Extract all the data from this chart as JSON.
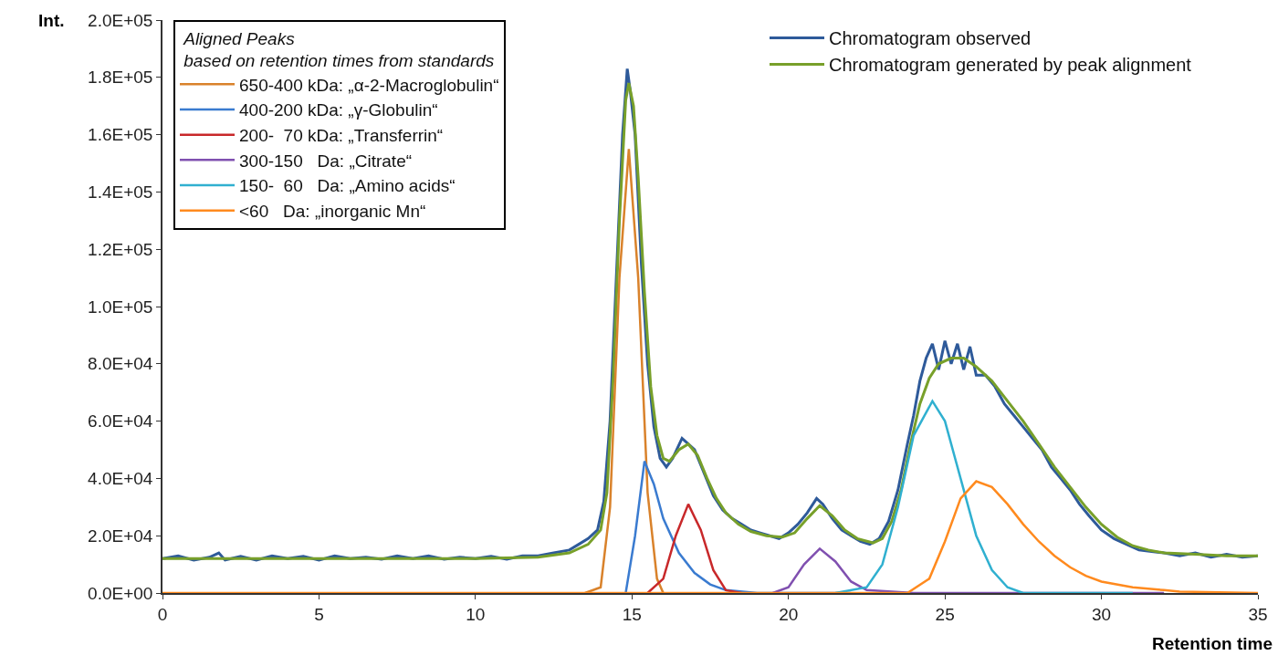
{
  "chart_data": {
    "type": "line",
    "xlabel": "Retention time",
    "ylabel": "Int.",
    "legend_title": "Aligned Peaks\nbased on retention times from standards",
    "xlim": [
      0,
      35
    ],
    "xticks": [
      0,
      5,
      10,
      15,
      20,
      25,
      30,
      35
    ],
    "ylim": [
      0,
      200000
    ],
    "yticks": [
      {
        "value": 0,
        "label": "0.0E+00"
      },
      {
        "value": 20000,
        "label": "2.0E+04"
      },
      {
        "value": 40000,
        "label": "4.0E+04"
      },
      {
        "value": 60000,
        "label": "6.0E+04"
      },
      {
        "value": 80000,
        "label": "8.0E+04"
      },
      {
        "value": 100000,
        "label": "1.0E+05"
      },
      {
        "value": 120000,
        "label": "1.2E+05"
      },
      {
        "value": 140000,
        "label": "1.4E+05"
      },
      {
        "value": 160000,
        "label": "1.6E+05"
      },
      {
        "value": 180000,
        "label": "1.8E+05"
      },
      {
        "value": 200000,
        "label": "2.0E+05"
      }
    ],
    "legend": "top left",
    "marker": "none",
    "line_style": "solid",
    "series": [
      {
        "name": "Chromatogram observed",
        "color": "#2e5a9a",
        "x": [
          0,
          0.5,
          1,
          1.5,
          1.8,
          2,
          2.5,
          3,
          3.5,
          4,
          4.5,
          5,
          5.5,
          6,
          6.5,
          7,
          7.5,
          8,
          8.5,
          9,
          9.5,
          10,
          10.5,
          11,
          11.5,
          12,
          12.5,
          13,
          13.3,
          13.6,
          13.9,
          14.1,
          14.3,
          14.5,
          14.7,
          14.85,
          14.95,
          15.1,
          15.3,
          15.5,
          15.7,
          15.9,
          16.1,
          16.3,
          16.6,
          16.8,
          17,
          17.3,
          17.6,
          17.9,
          18.2,
          18.5,
          18.8,
          19.1,
          19.4,
          19.7,
          20,
          20.3,
          20.6,
          20.9,
          21.1,
          21.4,
          21.7,
          22,
          22.3,
          22.6,
          22.9,
          23.2,
          23.5,
          23.8,
          24,
          24.2,
          24.4,
          24.6,
          24.8,
          25,
          25.2,
          25.4,
          25.6,
          25.8,
          26,
          26.3,
          26.6,
          26.9,
          27.2,
          27.5,
          27.8,
          28.1,
          28.4,
          28.7,
          29,
          29.3,
          29.6,
          30,
          30.4,
          30.8,
          31.2,
          31.6,
          32,
          32.5,
          33,
          33.5,
          34,
          34.5,
          35
        ],
        "values": [
          12000,
          13000,
          11500,
          12500,
          14000,
          11500,
          12800,
          11500,
          13000,
          12000,
          12800,
          11500,
          13000,
          12000,
          12500,
          11800,
          13000,
          12000,
          13000,
          11800,
          12500,
          12000,
          12800,
          11800,
          13000,
          13000,
          14000,
          15000,
          17000,
          19000,
          22000,
          32000,
          60000,
          110000,
          160000,
          183000,
          175000,
          160000,
          115000,
          80000,
          58000,
          47000,
          44000,
          47000,
          54000,
          52000,
          50000,
          42000,
          34000,
          29000,
          26000,
          24000,
          22000,
          21000,
          20000,
          19000,
          21000,
          24000,
          28000,
          33000,
          31000,
          26000,
          22000,
          20000,
          18000,
          17000,
          19000,
          25000,
          36000,
          52000,
          62000,
          74000,
          82000,
          87000,
          78000,
          88000,
          80000,
          87000,
          78000,
          86000,
          76000,
          76000,
          72000,
          66000,
          62000,
          58000,
          54000,
          50000,
          44000,
          40000,
          36000,
          31000,
          27000,
          22000,
          19000,
          17000,
          15000,
          14500,
          14000,
          13000,
          14000,
          12500,
          13500,
          12500,
          13000
        ]
      },
      {
        "name": "Chromatogram generated by peak alignment",
        "color": "#78a02a",
        "x": [
          0,
          5,
          10,
          12,
          13,
          13.6,
          14,
          14.2,
          14.4,
          14.6,
          14.8,
          14.9,
          15.05,
          15.2,
          15.4,
          15.6,
          15.8,
          16,
          16.2,
          16.5,
          16.8,
          17.1,
          17.4,
          17.7,
          18,
          18.4,
          18.8,
          19.3,
          19.8,
          20.2,
          20.6,
          21,
          21.4,
          21.8,
          22.2,
          22.7,
          23,
          23.3,
          23.6,
          23.9,
          24.2,
          24.5,
          24.8,
          25.2,
          25.6,
          26,
          26.5,
          27,
          27.5,
          28,
          28.5,
          29,
          29.5,
          30,
          30.5,
          31,
          31.5,
          32,
          33,
          34,
          35
        ],
        "values": [
          12000,
          12000,
          12000,
          12500,
          14000,
          17000,
          22000,
          35000,
          75000,
          130000,
          172000,
          178000,
          170000,
          145000,
          105000,
          72000,
          55000,
          47000,
          46000,
          50000,
          52000,
          48000,
          40000,
          33000,
          28000,
          24000,
          21500,
          20000,
          19500,
          21000,
          26000,
          30500,
          27000,
          22000,
          19000,
          17500,
          19000,
          25000,
          36000,
          52000,
          66000,
          75000,
          80000,
          82000,
          82000,
          79000,
          74000,
          67000,
          60000,
          52000,
          44000,
          37000,
          30000,
          24000,
          19500,
          16500,
          15000,
          14000,
          13500,
          13000,
          13000
        ]
      },
      {
        "name": "650-400 kDa: „α-2-Macroglobulin“",
        "color": "#d9822b",
        "x": [
          13.5,
          14,
          14.3,
          14.6,
          14.9,
          15.2,
          15.5,
          15.8,
          16
        ],
        "values": [
          0,
          2000,
          30000,
          110000,
          155000,
          110000,
          35000,
          5000,
          0
        ]
      },
      {
        "name": "400-200 kDa: „γ-Globulin“",
        "color": "#3a7bd0",
        "x": [
          14.8,
          15.1,
          15.4,
          15.7,
          16,
          16.5,
          17,
          17.5,
          18,
          19,
          22
        ],
        "values": [
          0,
          20000,
          46000,
          38000,
          26000,
          14000,
          7000,
          3000,
          1000,
          0,
          0
        ]
      },
      {
        "name": "200-  70 kDa: „Transferrin“",
        "color": "#c8282a",
        "x": [
          15.5,
          16,
          16.4,
          16.8,
          17.2,
          17.6,
          18,
          18.5
        ],
        "values": [
          0,
          5000,
          20000,
          31000,
          22000,
          8000,
          1000,
          0
        ]
      },
      {
        "name": "300-150   Da: „Citrate“",
        "color": "#8050b0",
        "x": [
          19.5,
          20,
          20.5,
          21,
          21.5,
          22,
          22.5,
          24,
          32
        ],
        "values": [
          0,
          2000,
          10000,
          15500,
          11000,
          4000,
          1000,
          0,
          0
        ]
      },
      {
        "name": "150-  60   Da: „Amino acids“",
        "color": "#30b0d0",
        "x": [
          21.5,
          22.5,
          23,
          23.5,
          24,
          24.6,
          25,
          25.5,
          26,
          26.5,
          27,
          27.5,
          31
        ],
        "values": [
          0,
          2000,
          10000,
          30000,
          55000,
          67000,
          60000,
          40000,
          20000,
          8000,
          2000,
          0,
          0
        ]
      },
      {
        "name": "<60   Da: „inorganic Mn“",
        "color": "#ff8a1e",
        "x": [
          0,
          23.8,
          24.5,
          25,
          25.5,
          26,
          26.5,
          27,
          27.5,
          28,
          28.5,
          29,
          29.5,
          30,
          31,
          32,
          32.5,
          35
        ],
        "values": [
          0,
          0,
          5000,
          18000,
          33000,
          39000,
          37000,
          31000,
          24000,
          18000,
          13000,
          9000,
          6000,
          4000,
          2000,
          1000,
          500,
          0
        ]
      }
    ]
  }
}
